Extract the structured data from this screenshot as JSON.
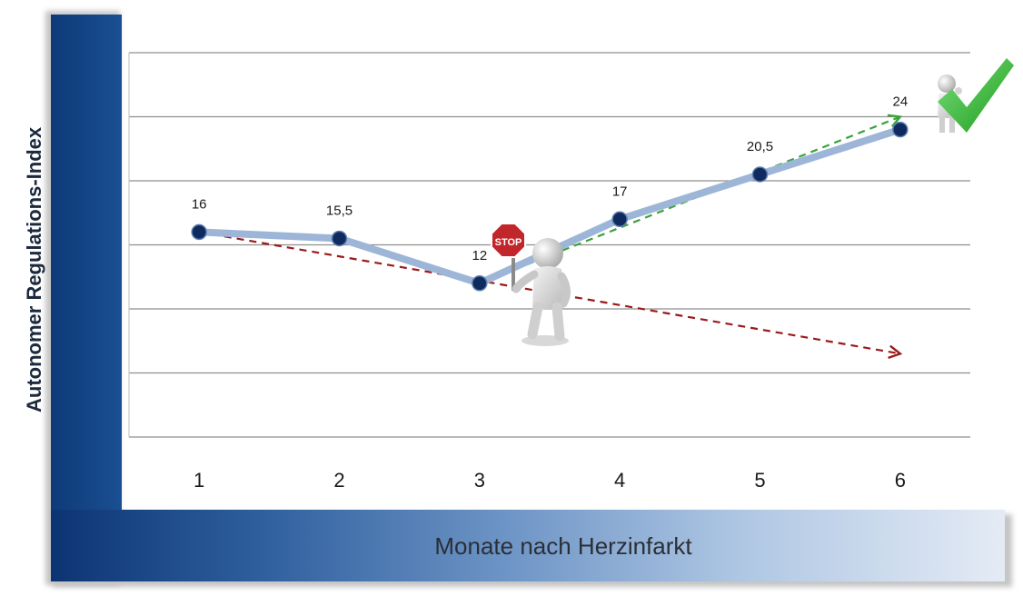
{
  "chart_data": {
    "type": "line",
    "xlabel": "Monate nach Herzinfarkt",
    "ylabel": "Autonomer Regulations-Index",
    "categories": [
      "1",
      "2",
      "3",
      "4",
      "5",
      "6"
    ],
    "series": [
      {
        "values": [
          16,
          15.5,
          12,
          17,
          20.5,
          24
        ],
        "color": "#9db6d8",
        "marker_color": "#0f2a5e"
      }
    ],
    "data_labels": [
      "16",
      "15,5",
      "12",
      "17",
      "20,5",
      "24"
    ],
    "trend_lines": [
      {
        "from_x": 1,
        "from_y": 16,
        "to_x": 6,
        "to_y": 6.5,
        "style": "dashed",
        "color": "#9b1a1a"
      },
      {
        "from_x": 3,
        "from_y": 12,
        "to_x": 6,
        "to_y": 25,
        "style": "dashed",
        "color": "#3aa33a"
      }
    ],
    "ylim": [
      0,
      30
    ],
    "grid": true,
    "axis_bar_color": "#0e3a78",
    "icons": [
      "stop-sign-figure-icon",
      "thumbs-up-figure-icon",
      "checkmark-icon"
    ],
    "stop_sign_text": "STOP"
  }
}
